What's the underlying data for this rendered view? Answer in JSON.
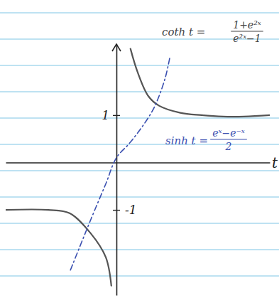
{
  "chart_data": {
    "type": "line",
    "x_label": "t",
    "xlim": [
      -2.6,
      3.6
    ],
    "ylim": [
      -2.8,
      2.5
    ],
    "yticks": [
      1,
      -1
    ],
    "tick_labels": "y",
    "grid": false,
    "series": [
      {
        "color": "#555555",
        "line_style": "solid",
        "x": [
          -2.6,
          -1.6,
          -1.1,
          -0.6,
          -0.25,
          -0.12,
          0,
          0.33,
          0.5,
          0.75,
          1.0,
          1.5,
          2.0,
          2.5,
          3.0,
          3.6
        ],
        "values": [
          -1.0,
          -1.0,
          -1.07,
          -1.5,
          -2.0,
          -2.6,
          null,
          2.4,
          1.9,
          1.4,
          1.2,
          1.05,
          1.0,
          0.97,
          0.97,
          1.0
        ]
      },
      {
        "color": "#3a4fb0",
        "line_style": "dashdot",
        "x": [
          -1.08,
          -0.6,
          -0.25,
          0,
          0.3,
          0.6,
          0.85,
          1.0,
          1.15,
          1.25
        ],
        "values": [
          -2.27,
          -1.2,
          -0.45,
          0.1,
          0.4,
          0.75,
          1.1,
          1.4,
          1.8,
          2.2
        ]
      }
    ],
    "annotations": [
      {
        "text": "coth t =",
        "numerator": "1+e²ˣ",
        "denominator": "e²ˣ−1",
        "color": "#444444"
      },
      {
        "text": "sinh t =",
        "numerator": "eˣ−e⁻ˣ",
        "denominator": "2",
        "color": "#3a4fb0"
      }
    ]
  }
}
